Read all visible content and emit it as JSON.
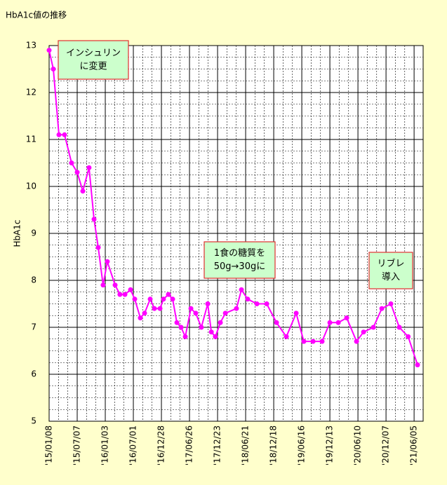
{
  "chart_data": {
    "type": "line",
    "title": "HbA1c値の推移",
    "y_label": "HbA1c",
    "x": [
      "2015-01-08",
      "2015-02-04",
      "2015-03-12",
      "2015-04-17",
      "2015-06-01",
      "2015-07-07",
      "2015-08-12",
      "2015-09-21",
      "2015-10-23",
      "2015-11-19",
      "2015-12-20",
      "2016-01-16",
      "2016-03-06",
      "2016-04-06",
      "2016-05-08",
      "2016-06-13",
      "2016-07-10",
      "2016-08-15",
      "2016-09-11",
      "2016-10-17",
      "2016-11-13",
      "2016-12-19",
      "2017-01-10",
      "2017-02-11",
      "2017-03-10",
      "2017-04-06",
      "2017-05-03",
      "2017-05-30",
      "2017-07-05",
      "2017-08-05",
      "2017-09-10",
      "2017-10-21",
      "2017-11-13",
      "2017-12-09",
      "2018-01-10",
      "2018-02-11",
      "2018-04-23",
      "2018-05-25",
      "2018-07-04",
      "2018-09-01",
      "2018-11-03",
      "2019-01-05",
      "2019-03-09",
      "2019-05-11",
      "2019-06-29",
      "2019-08-27",
      "2019-10-24",
      "2019-12-13",
      "2020-02-05",
      "2020-03-30",
      "2020-06-01",
      "2020-07-16",
      "2020-09-17",
      "2020-11-10",
      "2021-01-07",
      "2021-03-02",
      "2021-04-28",
      "2021-06-27"
    ],
    "series": [
      {
        "name": "HbA1c",
        "color": "#ff00ff",
        "values": [
          12.9,
          12.5,
          11.1,
          11.1,
          10.5,
          10.3,
          9.9,
          10.4,
          9.3,
          8.7,
          7.9,
          8.4,
          7.9,
          7.7,
          7.7,
          7.8,
          7.6,
          7.2,
          7.3,
          7.6,
          7.4,
          7.4,
          7.6,
          7.7,
          7.6,
          7.1,
          7.0,
          6.8,
          7.4,
          7.3,
          7.0,
          7.5,
          6.9,
          6.8,
          7.1,
          7.3,
          7.4,
          7.8,
          7.6,
          7.5,
          7.5,
          7.1,
          6.8,
          7.3,
          6.7,
          6.7,
          6.7,
          7.1,
          7.1,
          7.2,
          6.7,
          6.9,
          7.0,
          7.4,
          7.5,
          7.0,
          6.8,
          6.2
        ]
      }
    ],
    "xlim": [
      "2015-01-08",
      "2021-08-02"
    ],
    "xticks": [
      {
        "value": "2015-01-08",
        "label": "'15/01/08"
      },
      {
        "value": "2015-07-07",
        "label": "'15/07/07"
      },
      {
        "value": "2016-01-03",
        "label": "'16/01/03"
      },
      {
        "value": "2016-07-01",
        "label": "'16/07/01"
      },
      {
        "value": "2016-12-28",
        "label": "'16/12/28"
      },
      {
        "value": "2017-06-26",
        "label": "'17/06/26"
      },
      {
        "value": "2017-12-23",
        "label": "'17/12/23"
      },
      {
        "value": "2018-06-21",
        "label": "'18/06/21"
      },
      {
        "value": "2018-12-18",
        "label": "'18/12/18"
      },
      {
        "value": "2019-06-16",
        "label": "'19/06/16"
      },
      {
        "value": "2019-12-13",
        "label": "'19/12/13"
      },
      {
        "value": "2020-06-10",
        "label": "'20/06/10"
      },
      {
        "value": "2020-12-07",
        "label": "'20/12/07"
      },
      {
        "value": "2021-06-05",
        "label": "'21/06/05"
      }
    ],
    "ylim": [
      5,
      13
    ],
    "yticks": [
      5,
      6,
      7,
      8,
      9,
      10,
      11,
      12,
      13
    ],
    "grid": true,
    "annotations": [
      {
        "lines": [
          "インシュリン",
          "に変更"
        ]
      },
      {
        "lines": [
          "1食の糖質を",
          "50g→30gに"
        ]
      },
      {
        "lines": [
          "リブレ",
          "導入"
        ]
      }
    ]
  }
}
